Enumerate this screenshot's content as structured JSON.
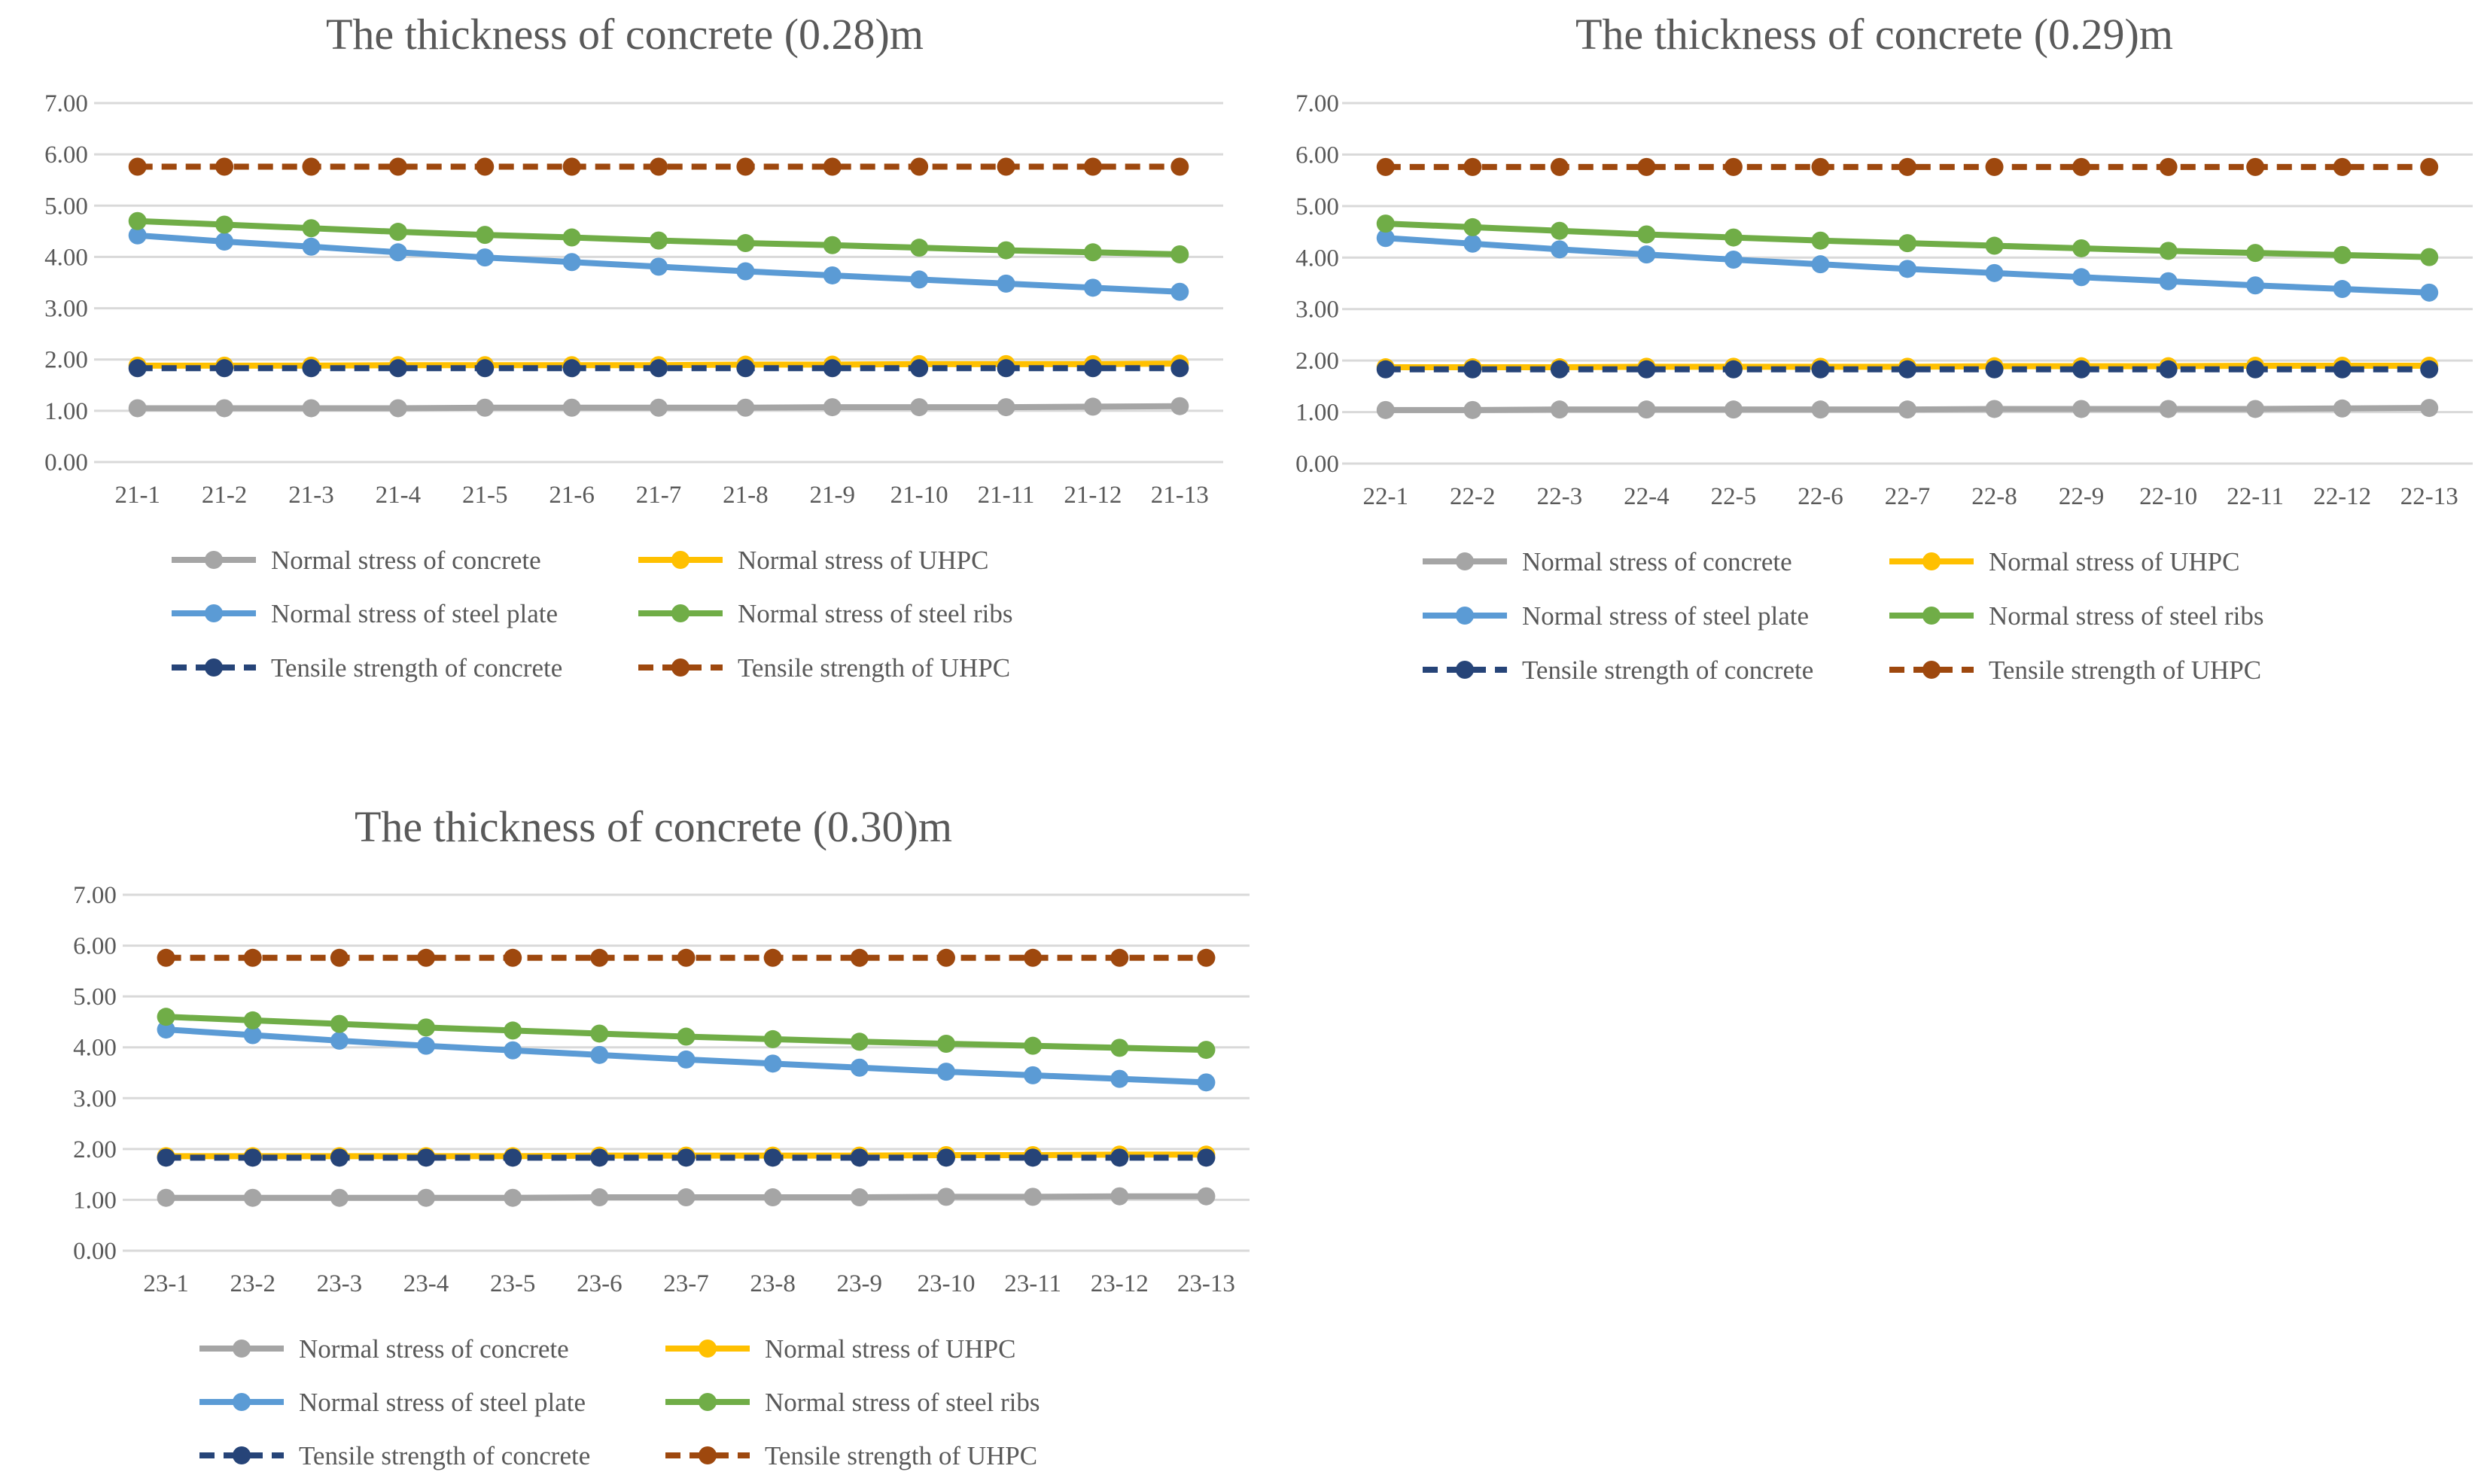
{
  "legend_labels": [
    "Normal stress of concrete",
    "Normal stress of UHPC",
    "Normal stress of steel plate",
    "Normal stress of steel ribs",
    "Tensile strength of concrete",
    "Tensile strength of UHPC"
  ],
  "chart_data": [
    {
      "type": "line",
      "title": "The thickness of concrete (0.28)m",
      "categories": [
        "21-1",
        "21-2",
        "21-3",
        "21-4",
        "21-5",
        "21-6",
        "21-7",
        "21-8",
        "21-9",
        "21-10",
        "21-11",
        "21-12",
        "21-13"
      ],
      "yticks": [
        "0.00",
        "1.00",
        "2.00",
        "3.00",
        "4.00",
        "5.00",
        "6.00",
        "7.00"
      ],
      "ylim": [
        0,
        7
      ],
      "xlabel": "",
      "ylabel": "",
      "legend_position": "bottom",
      "series": [
        {
          "name": "Normal stress of concrete",
          "color": "#A5A5A5",
          "dash": false,
          "values": [
            1.05,
            1.05,
            1.05,
            1.05,
            1.06,
            1.06,
            1.06,
            1.06,
            1.07,
            1.07,
            1.07,
            1.08,
            1.09
          ]
        },
        {
          "name": "Normal stress of UHPC",
          "color": "#FFC000",
          "dash": false,
          "values": [
            1.88,
            1.88,
            1.88,
            1.89,
            1.89,
            1.89,
            1.89,
            1.9,
            1.9,
            1.91,
            1.91,
            1.91,
            1.92
          ]
        },
        {
          "name": "Normal stress of steel plate",
          "color": "#5B9BD5",
          "dash": false,
          "values": [
            4.42,
            4.3,
            4.2,
            4.09,
            3.99,
            3.9,
            3.81,
            3.72,
            3.64,
            3.56,
            3.48,
            3.4,
            3.32
          ]
        },
        {
          "name": "Normal stress of steel ribs",
          "color": "#70AD47",
          "dash": false,
          "values": [
            4.7,
            4.63,
            4.56,
            4.49,
            4.43,
            4.38,
            4.32,
            4.27,
            4.23,
            4.18,
            4.13,
            4.09,
            4.05
          ]
        },
        {
          "name": "Tensile strength of concrete",
          "color": "#264478",
          "dash": true,
          "values": [
            1.83,
            1.83,
            1.83,
            1.83,
            1.83,
            1.83,
            1.83,
            1.83,
            1.83,
            1.83,
            1.83,
            1.83,
            1.83
          ]
        },
        {
          "name": "Tensile strength of UHPC",
          "color": "#9E480E",
          "dash": true,
          "values": [
            5.76,
            5.76,
            5.76,
            5.76,
            5.76,
            5.76,
            5.76,
            5.76,
            5.76,
            5.76,
            5.76,
            5.76,
            5.76
          ]
        }
      ]
    },
    {
      "type": "line",
      "title": "The thickness of concrete (0.29)m",
      "categories": [
        "22-1",
        "22-2",
        "22-3",
        "22-4",
        "22-5",
        "22-6",
        "22-7",
        "22-8",
        "22-9",
        "22-10",
        "22-11",
        "22-12",
        "22-13"
      ],
      "yticks": [
        "0.00",
        "1.00",
        "2.00",
        "3.00",
        "4.00",
        "5.00",
        "6.00",
        "7.00"
      ],
      "ylim": [
        0,
        7
      ],
      "xlabel": "",
      "ylabel": "",
      "legend_position": "bottom",
      "series": [
        {
          "name": "Normal stress of concrete",
          "color": "#A5A5A5",
          "dash": false,
          "values": [
            1.04,
            1.04,
            1.05,
            1.05,
            1.05,
            1.05,
            1.05,
            1.06,
            1.06,
            1.06,
            1.06,
            1.07,
            1.08
          ]
        },
        {
          "name": "Normal stress of UHPC",
          "color": "#FFC000",
          "dash": false,
          "values": [
            1.87,
            1.87,
            1.87,
            1.88,
            1.88,
            1.88,
            1.88,
            1.89,
            1.89,
            1.89,
            1.9,
            1.9,
            1.9
          ]
        },
        {
          "name": "Normal stress of steel plate",
          "color": "#5B9BD5",
          "dash": false,
          "values": [
            4.38,
            4.27,
            4.16,
            4.06,
            3.96,
            3.87,
            3.78,
            3.7,
            3.62,
            3.54,
            3.46,
            3.39,
            3.32
          ]
        },
        {
          "name": "Normal stress of steel ribs",
          "color": "#70AD47",
          "dash": false,
          "values": [
            4.66,
            4.59,
            4.52,
            4.45,
            4.39,
            4.33,
            4.28,
            4.23,
            4.18,
            4.13,
            4.09,
            4.05,
            4.01
          ]
        },
        {
          "name": "Tensile strength of concrete",
          "color": "#264478",
          "dash": true,
          "values": [
            1.83,
            1.83,
            1.83,
            1.83,
            1.83,
            1.83,
            1.83,
            1.83,
            1.83,
            1.83,
            1.83,
            1.83,
            1.83
          ]
        },
        {
          "name": "Tensile strength of UHPC",
          "color": "#9E480E",
          "dash": true,
          "values": [
            5.76,
            5.76,
            5.76,
            5.76,
            5.76,
            5.76,
            5.76,
            5.76,
            5.76,
            5.76,
            5.76,
            5.76,
            5.76
          ]
        }
      ]
    },
    {
      "type": "line",
      "title": "The thickness of concrete (0.30)m",
      "categories": [
        "23-1",
        "23-2",
        "23-3",
        "23-4",
        "23-5",
        "23-6",
        "23-7",
        "23-8",
        "23-9",
        "23-10",
        "23-11",
        "23-12",
        "23-13"
      ],
      "yticks": [
        "0.00",
        "1.00",
        "2.00",
        "3.00",
        "4.00",
        "5.00",
        "6.00",
        "7.00"
      ],
      "ylim": [
        0,
        7
      ],
      "xlabel": "",
      "ylabel": "",
      "legend_position": "bottom",
      "series": [
        {
          "name": "Normal stress of concrete",
          "color": "#A5A5A5",
          "dash": false,
          "values": [
            1.04,
            1.04,
            1.04,
            1.04,
            1.04,
            1.05,
            1.05,
            1.05,
            1.05,
            1.06,
            1.06,
            1.07,
            1.07
          ]
        },
        {
          "name": "Normal stress of UHPC",
          "color": "#FFC000",
          "dash": false,
          "values": [
            1.86,
            1.86,
            1.86,
            1.86,
            1.86,
            1.87,
            1.87,
            1.87,
            1.87,
            1.88,
            1.88,
            1.89,
            1.89
          ]
        },
        {
          "name": "Normal stress of steel plate",
          "color": "#5B9BD5",
          "dash": false,
          "values": [
            4.35,
            4.24,
            4.13,
            4.03,
            3.94,
            3.85,
            3.76,
            3.68,
            3.6,
            3.52,
            3.45,
            3.38,
            3.31
          ]
        },
        {
          "name": "Normal stress of steel ribs",
          "color": "#70AD47",
          "dash": false,
          "values": [
            4.6,
            4.53,
            4.46,
            4.39,
            4.33,
            4.27,
            4.21,
            4.16,
            4.11,
            4.07,
            4.03,
            3.99,
            3.95
          ]
        },
        {
          "name": "Tensile strength of concrete",
          "color": "#264478",
          "dash": true,
          "values": [
            1.83,
            1.83,
            1.83,
            1.83,
            1.83,
            1.83,
            1.83,
            1.83,
            1.83,
            1.83,
            1.83,
            1.83,
            1.83
          ]
        },
        {
          "name": "Tensile strength of UHPC",
          "color": "#9E480E",
          "dash": true,
          "values": [
            5.76,
            5.76,
            5.76,
            5.76,
            5.76,
            5.76,
            5.76,
            5.76,
            5.76,
            5.76,
            5.76,
            5.76,
            5.76
          ]
        }
      ]
    }
  ]
}
